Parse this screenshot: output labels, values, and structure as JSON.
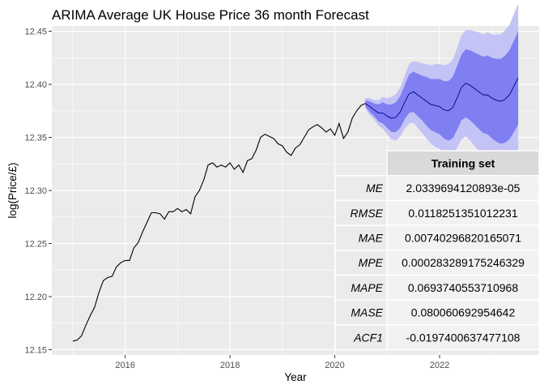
{
  "chart_data": {
    "type": "line",
    "title": "ARIMA Average UK House Price 36 month Forecast",
    "xlabel": "Year",
    "ylabel": "log(Price/£)",
    "xlim": [
      2014.6,
      2023.9
    ],
    "ylim": [
      12.145,
      12.455
    ],
    "x_ticks": [
      2016,
      2018,
      2020,
      2022
    ],
    "y_ticks": [
      "12.15",
      "12.20",
      "12.25",
      "12.30",
      "12.35",
      "12.40",
      "12.45"
    ],
    "grid": true,
    "background": "#ebebeb",
    "colors": {
      "history": "#000000",
      "forecast_mean": "#00008b",
      "interval_80": "#7f7ff2",
      "interval_95": "#c3c3f6"
    },
    "series": [
      {
        "role": "history",
        "x": [
          2015.0,
          2015.083,
          2015.167,
          2015.25,
          2015.333,
          2015.417,
          2015.5,
          2015.583,
          2015.667,
          2015.75,
          2015.833,
          2015.917,
          2016.0,
          2016.083,
          2016.167,
          2016.25,
          2016.333,
          2016.417,
          2016.5,
          2016.583,
          2016.667,
          2016.75,
          2016.833,
          2016.917,
          2017.0,
          2017.083,
          2017.167,
          2017.25,
          2017.333,
          2017.417,
          2017.5,
          2017.583,
          2017.667,
          2017.75,
          2017.833,
          2017.917,
          2018.0,
          2018.083,
          2018.167,
          2018.25,
          2018.333,
          2018.417,
          2018.5,
          2018.583,
          2018.667,
          2018.75,
          2018.833,
          2018.917,
          2019.0,
          2019.083,
          2019.167,
          2019.25,
          2019.333,
          2019.417,
          2019.5,
          2019.583,
          2019.667,
          2019.75,
          2019.833,
          2019.917,
          2020.0,
          2020.083,
          2020.167,
          2020.25,
          2020.333,
          2020.417,
          2020.5,
          2020.583
        ],
        "y": [
          12.158,
          12.159,
          12.163,
          12.173,
          12.182,
          12.19,
          12.204,
          12.215,
          12.218,
          12.219,
          12.228,
          12.232,
          12.234,
          12.234,
          12.246,
          12.251,
          12.261,
          12.27,
          12.279,
          12.279,
          12.278,
          12.273,
          12.28,
          12.28,
          12.283,
          12.28,
          12.282,
          12.278,
          12.294,
          12.3,
          12.31,
          12.324,
          12.326,
          12.322,
          12.324,
          12.322,
          12.326,
          12.32,
          12.324,
          12.317,
          12.328,
          12.33,
          12.338,
          12.35,
          12.353,
          12.351,
          12.349,
          12.344,
          12.342,
          12.336,
          12.333,
          12.34,
          12.343,
          12.35,
          12.357,
          12.36,
          12.362,
          12.359,
          12.355,
          12.358,
          12.352,
          12.363,
          12.349,
          12.355,
          12.368,
          12.375,
          12.38,
          12.382
        ]
      },
      {
        "role": "forecast",
        "x": [
          2020.583,
          2020.667,
          2020.75,
          2020.833,
          2020.917,
          2021.0,
          2021.083,
          2021.167,
          2021.25,
          2021.333,
          2021.417,
          2021.5,
          2021.583,
          2021.667,
          2021.75,
          2021.833,
          2021.917,
          2022.0,
          2022.083,
          2022.167,
          2022.25,
          2022.333,
          2022.417,
          2022.5,
          2022.583,
          2022.667,
          2022.75,
          2022.833,
          2022.917,
          2023.0,
          2023.083,
          2023.167,
          2023.25,
          2023.333,
          2023.417,
          2023.5
        ],
        "mean": [
          12.382,
          12.379,
          12.376,
          12.373,
          12.373,
          12.37,
          12.368,
          12.369,
          12.374,
          12.383,
          12.391,
          12.393,
          12.39,
          12.387,
          12.384,
          12.381,
          12.38,
          12.379,
          12.376,
          12.375,
          12.378,
          12.387,
          12.397,
          12.401,
          12.399,
          12.396,
          12.393,
          12.39,
          12.39,
          12.387,
          12.385,
          12.384,
          12.386,
          12.39,
          12.398,
          12.406
        ],
        "lo80": [
          12.379,
          12.374,
          12.37,
          12.365,
          12.363,
          12.359,
          12.355,
          12.355,
          12.359,
          12.367,
          12.373,
          12.374,
          12.37,
          12.366,
          12.361,
          12.357,
          12.355,
          12.353,
          12.349,
          12.347,
          12.349,
          12.357,
          12.366,
          12.369,
          12.366,
          12.362,
          12.358,
          12.354,
          12.353,
          12.349,
          12.346,
          12.344,
          12.345,
          12.348,
          12.355,
          12.362
        ],
        "hi80": [
          12.385,
          12.384,
          12.382,
          12.381,
          12.383,
          12.381,
          12.381,
          12.383,
          12.389,
          12.399,
          12.409,
          12.412,
          12.41,
          12.408,
          12.407,
          12.405,
          12.405,
          12.405,
          12.403,
          12.403,
          12.407,
          12.417,
          12.428,
          12.433,
          12.432,
          12.43,
          12.428,
          12.426,
          12.427,
          12.425,
          12.424,
          12.424,
          12.427,
          12.432,
          12.441,
          12.45
        ],
        "lo95": [
          12.377,
          12.371,
          12.367,
          12.361,
          12.358,
          12.353,
          12.348,
          12.347,
          12.351,
          12.358,
          12.363,
          12.364,
          12.359,
          12.354,
          12.349,
          12.344,
          12.341,
          12.339,
          12.334,
          12.331,
          12.333,
          12.34,
          12.348,
          12.351,
          12.347,
          12.342,
          12.337,
          12.333,
          12.331,
          12.327,
          12.323,
          12.321,
          12.321,
          12.324,
          12.33,
          12.336
        ],
        "hi95": [
          12.387,
          12.387,
          12.385,
          12.385,
          12.388,
          12.387,
          12.388,
          12.391,
          12.397,
          12.408,
          12.419,
          12.422,
          12.421,
          12.42,
          12.419,
          12.418,
          12.419,
          12.419,
          12.418,
          12.419,
          12.423,
          12.434,
          12.446,
          12.451,
          12.451,
          12.45,
          12.449,
          12.447,
          12.449,
          12.447,
          12.447,
          12.447,
          12.451,
          12.456,
          12.466,
          12.476
        ]
      }
    ],
    "table": {
      "header": "Training set",
      "rows": [
        {
          "name": "ME",
          "value": "2.0339694120893e-05"
        },
        {
          "name": "RMSE",
          "value": "0.0118251351012231"
        },
        {
          "name": "MAE",
          "value": "0.00740296820165071"
        },
        {
          "name": "MPE",
          "value": "0.000283289175246329"
        },
        {
          "name": "MAPE",
          "value": "0.0693740553710968"
        },
        {
          "name": "MASE",
          "value": "0.080060692954642"
        },
        {
          "name": "ACF1",
          "value": "-0.0197400637477108"
        }
      ]
    }
  }
}
